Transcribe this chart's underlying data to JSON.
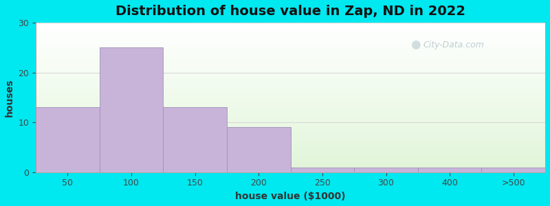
{
  "title": "Distribution of house value in Zap, ND in 2022",
  "xlabel": "house value ($1000)",
  "ylabel": "houses",
  "tick_labels": [
    "50",
    "100",
    "150",
    "200",
    "250",
    "300",
    "400",
    ">500"
  ],
  "bar_heights": [
    13,
    25,
    13,
    9,
    1,
    1,
    1,
    1
  ],
  "bar_color": "#c8b4d8",
  "bar_edge_color": "#a090b8",
  "ylim": [
    0,
    30
  ],
  "yticks": [
    0,
    10,
    20,
    30
  ],
  "bg_color_outer": "#00e8f0",
  "bg_color_plot": "#edf5e5",
  "grid_color": "#d8d8d8",
  "title_fontsize": 14,
  "axis_label_fontsize": 10,
  "tick_fontsize": 9,
  "watermark_text": "City-Data.com",
  "watermark_color": "#b8c8d0"
}
